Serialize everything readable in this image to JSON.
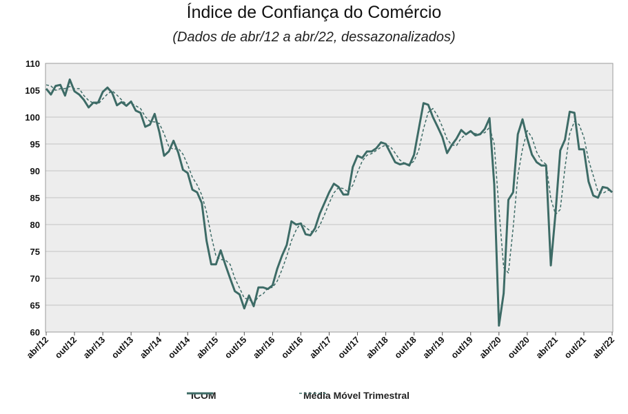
{
  "chart_data": {
    "type": "line",
    "title": "Índice de Confiança do Comércio",
    "subtitle": "(Dados de abr/12 a abr/22, dessazonalizados)",
    "ylim": [
      60,
      110
    ],
    "yticks": [
      60,
      65,
      70,
      75,
      80,
      85,
      90,
      95,
      100,
      105,
      110
    ],
    "x_tick_labels": [
      "abr/12",
      "out/12",
      "abr/13",
      "out/13",
      "abr/14",
      "out/14",
      "abr/15",
      "out/15",
      "abr/16",
      "out/16",
      "abr/17",
      "out/17",
      "abr/18",
      "out/18",
      "abr/19",
      "out/19",
      "abr/20",
      "out/20",
      "abr/21",
      "out/21",
      "abr/22"
    ],
    "x_start": "abr/12",
    "x_end": "abr/22",
    "grid": true,
    "legend_position": "bottom",
    "colors": {
      "icom": "#3d6b66",
      "mm3": "#3d6b66",
      "plot_bg": "#ededed",
      "grid": "#c4c4c4"
    },
    "series": [
      {
        "name": "ICOM",
        "style": "solid",
        "values": [
          105.3,
          104.2,
          105.8,
          106.0,
          104.0,
          107.0,
          104.8,
          104.2,
          103.2,
          101.8,
          102.7,
          102.7,
          104.7,
          105.5,
          104.5,
          102.2,
          102.8,
          102.1,
          102.9,
          101.2,
          100.8,
          98.2,
          98.6,
          100.6,
          97.2,
          92.8,
          93.6,
          95.6,
          93.4,
          90.2,
          89.6,
          86.5,
          86.0,
          84.0,
          77.0,
          72.6,
          72.6,
          75.2,
          72.5,
          70.0,
          67.6,
          67.0,
          64.4,
          66.8,
          64.8,
          68.3,
          68.3,
          68.0,
          68.7,
          71.8,
          74.2,
          76.2,
          80.6,
          80.0,
          80.2,
          78.2,
          78.0,
          79.3,
          82.0,
          84.0,
          86.0,
          87.6,
          87.0,
          85.6,
          85.6,
          90.7,
          92.8,
          92.4,
          93.6,
          93.6,
          94.2,
          95.3,
          95.0,
          93.3,
          91.6,
          91.2,
          91.4,
          91.0,
          93.0,
          97.8,
          102.6,
          102.3,
          100.0,
          98.2,
          96.3,
          93.3,
          94.8,
          96.0,
          97.6,
          96.8,
          97.4,
          96.6,
          96.8,
          97.8,
          99.8,
          87.5,
          61.2,
          67.2,
          84.6,
          86.0,
          96.8,
          99.6,
          96.0,
          93.0,
          91.6,
          91.0,
          91.0,
          72.4,
          82.2,
          93.8,
          95.8,
          101.0,
          100.8,
          94.0,
          94.0,
          88.0,
          85.4,
          85.0,
          87.0,
          86.8,
          86.0
        ]
      },
      {
        "name": "Média Móvel Trimestral",
        "style": "dashed",
        "values": [
          106.0,
          105.8,
          105.0,
          105.3,
          105.3,
          105.7,
          105.3,
          105.3,
          104.0,
          103.1,
          102.6,
          102.4,
          103.4,
          104.3,
          104.9,
          104.1,
          103.2,
          102.4,
          102.6,
          102.1,
          101.6,
          100.1,
          99.2,
          99.1,
          98.8,
          96.9,
          94.5,
          94.0,
          94.2,
          93.1,
          91.1,
          88.8,
          87.4,
          85.5,
          82.3,
          77.9,
          74.1,
          73.5,
          73.4,
          72.6,
          70.0,
          68.2,
          66.3,
          66.1,
          65.3,
          66.6,
          67.1,
          68.2,
          68.3,
          69.5,
          71.6,
          74.1,
          77.0,
          79.0,
          80.3,
          79.5,
          78.8,
          78.5,
          79.8,
          81.8,
          84.0,
          85.9,
          86.9,
          86.7,
          86.1,
          87.3,
          89.7,
          91.8,
          92.9,
          93.2,
          93.8,
          94.4,
          94.8,
          94.5,
          93.3,
          92.0,
          91.4,
          91.2,
          91.8,
          93.9,
          97.8,
          100.9,
          101.6,
          100.2,
          98.2,
          95.9,
          94.8,
          94.7,
          96.1,
          96.8,
          97.3,
          96.9,
          96.9,
          97.1,
          98.1,
          95.0,
          82.8,
          72.0,
          71.0,
          79.3,
          89.1,
          94.1,
          97.5,
          96.2,
          93.5,
          91.9,
          91.2,
          84.8,
          81.9,
          82.8,
          90.6,
          96.9,
          99.2,
          98.6,
          96.3,
          92.0,
          89.1,
          86.1,
          85.8,
          86.3,
          86.6
        ]
      }
    ]
  }
}
